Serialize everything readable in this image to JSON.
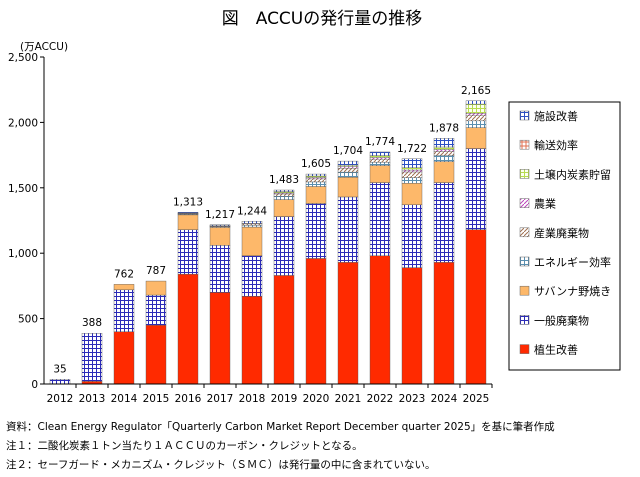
{
  "chart_data": {
    "type": "bar",
    "stacked": true,
    "title": "図　ACCUの発行量の推移",
    "ylabel": "(万ACCU)",
    "ylim": [
      0,
      2500
    ],
    "yticks": [
      0,
      500,
      1000,
      1500,
      2000,
      2500
    ],
    "ytick_labels": [
      "0",
      "500",
      "1,000",
      "1,500",
      "2,000",
      "2,500"
    ],
    "categories": [
      "2012",
      "2013",
      "2014",
      "2015",
      "2016",
      "2017",
      "2018",
      "2019",
      "2020",
      "2021",
      "2022",
      "2023",
      "2024",
      "2025"
    ],
    "totals": [
      35,
      388,
      762,
      787,
      1313,
      1217,
      1244,
      1483,
      1605,
      1704,
      1774,
      1722,
      1878,
      2165
    ],
    "total_labels": [
      "35",
      "388",
      "762",
      "787",
      "1,313",
      "1,217",
      "1,244",
      "1,483",
      "1,605",
      "1,704",
      "1,774",
      "1,722",
      "1,878",
      "2,165"
    ],
    "series": [
      {
        "name": "植生改善",
        "pattern": "solid",
        "color": "#ff2a00",
        "values": [
          0,
          20,
          400,
          450,
          840,
          700,
          670,
          830,
          960,
          930,
          980,
          890,
          930,
          1180
        ]
      },
      {
        "name": "一般廃棄物",
        "pattern": "grid",
        "color": "#3333cc",
        "values": [
          35,
          368,
          320,
          230,
          340,
          360,
          310,
          450,
          420,
          500,
          560,
          480,
          610,
          620
        ]
      },
      {
        "name": "サバンナ野焼き",
        "pattern": "solid",
        "color": "#fdb86a",
        "values": [
          0,
          0,
          42,
          107,
          113,
          137,
          220,
          130,
          130,
          150,
          130,
          165,
          160,
          160
        ]
      },
      {
        "name": "エネルギー効率",
        "pattern": "grid",
        "color": "#6fa8c8",
        "values": [
          0,
          0,
          0,
          0,
          5,
          5,
          14,
          25,
          35,
          40,
          25,
          43,
          48,
          52
        ]
      },
      {
        "name": "産業廃棄物",
        "pattern": "diag",
        "color": "#c8a080",
        "values": [
          0,
          0,
          0,
          0,
          5,
          5,
          10,
          18,
          23,
          30,
          24,
          43,
          30,
          43
        ]
      },
      {
        "name": "農業",
        "pattern": "diag",
        "color": "#cc66cc",
        "values": [
          0,
          0,
          0,
          0,
          3,
          3,
          5,
          8,
          10,
          12,
          12,
          15,
          14,
          15
        ]
      },
      {
        "name": "土壌内炭素貯留",
        "pattern": "grid",
        "color": "#ccee66",
        "values": [
          0,
          0,
          0,
          0,
          0,
          0,
          0,
          10,
          12,
          12,
          15,
          17,
          20,
          70
        ]
      },
      {
        "name": "輸送効率",
        "pattern": "grid",
        "color": "#e07050",
        "values": [
          0,
          0,
          0,
          0,
          0,
          0,
          0,
          0,
          0,
          0,
          0,
          0,
          0,
          0
        ]
      },
      {
        "name": "施設改善",
        "pattern": "grid",
        "color": "#3355cc",
        "values": [
          0,
          0,
          0,
          0,
          7,
          7,
          15,
          12,
          15,
          30,
          28,
          69,
          66,
          25
        ]
      }
    ],
    "legend_order": [
      "施設改善",
      "輸送効率",
      "土壌内炭素貯留",
      "農業",
      "産業廃棄物",
      "エネルギー効率",
      "サバンナ野焼き",
      "一般廃棄物",
      "植生改善"
    ],
    "legend_position": "right"
  },
  "notes": [
    "資料：Clean Energy Regulator「Quarterly Carbon Market Report December quarter 2025」を基に筆者作成",
    "注１：二酸化炭素１トン当たり１ＡＣＣＵのカーボン・クレジットとなる。",
    "注２：セーフガード・メカニズム・クレジット（ＳＭＣ）は発行量の中に含まれていない。"
  ]
}
